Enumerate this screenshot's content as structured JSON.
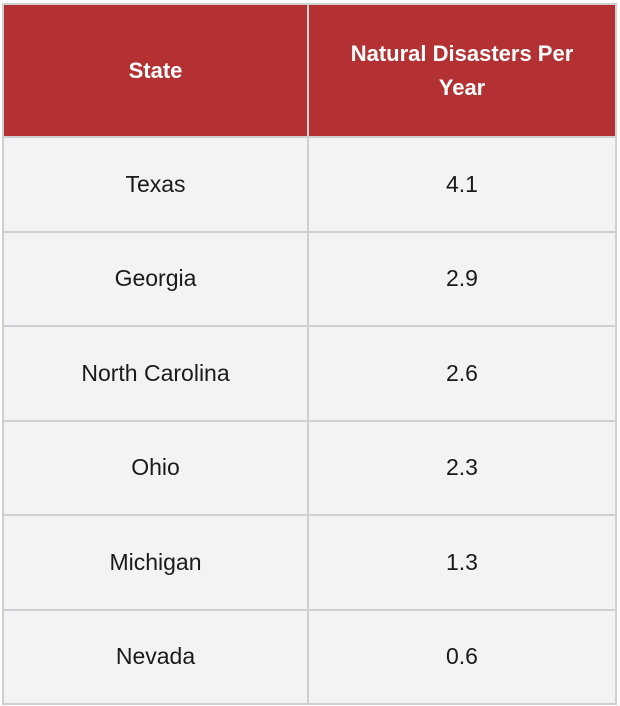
{
  "table": {
    "headers": [
      "State",
      "Natural Disasters Per Year"
    ],
    "rows": [
      {
        "state": "Texas",
        "value": "4.1"
      },
      {
        "state": "Georgia",
        "value": "2.9"
      },
      {
        "state": "North Carolina",
        "value": "2.6"
      },
      {
        "state": "Ohio",
        "value": "2.3"
      },
      {
        "state": "Michigan",
        "value": "1.3"
      },
      {
        "state": "Nevada",
        "value": "0.6"
      }
    ]
  },
  "colors": {
    "header_bg": "#b33133",
    "header_text": "#ffffff",
    "cell_bg": "#f3f3f5",
    "grid": "#d0d0d0"
  }
}
